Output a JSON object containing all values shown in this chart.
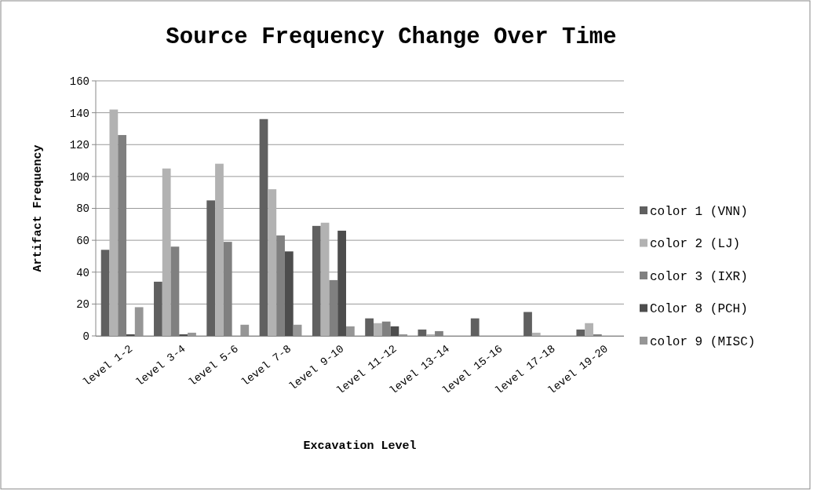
{
  "chart_data": {
    "type": "bar",
    "title": "Source Frequency Change Over Time",
    "xlabel": "Excavation Level",
    "ylabel": "Artifact Frequency",
    "categories": [
      "level 1-2",
      "level 3-4",
      "level 5-6",
      "level 7-8",
      "level 9-10",
      "level 11-12",
      "level 13-14",
      "level 15-16",
      "level 17-18",
      "level 19-20"
    ],
    "series": [
      {
        "name": "color 1 (VNN)",
        "color": "#606060",
        "values": [
          54,
          34,
          85,
          136,
          69,
          11,
          4,
          11,
          15,
          4
        ]
      },
      {
        "name": "color 2 (LJ)",
        "color": "#b2b2b2",
        "values": [
          142,
          105,
          108,
          92,
          71,
          8,
          1,
          0,
          2,
          8
        ]
      },
      {
        "name": "color 3 (IXR)",
        "color": "#808080",
        "values": [
          126,
          56,
          59,
          63,
          35,
          9,
          3,
          0,
          0,
          1
        ]
      },
      {
        "name": "Color 8 (PCH)",
        "color": "#4d4d4d",
        "values": [
          1,
          1,
          0,
          53,
          66,
          6,
          0,
          0,
          0,
          0
        ]
      },
      {
        "name": "color 9 (MISC)",
        "color": "#969696",
        "values": [
          18,
          2,
          7,
          7,
          6,
          1,
          0,
          0,
          0,
          0
        ]
      }
    ],
    "ylim": [
      0,
      160
    ],
    "yticks": [
      0,
      20,
      40,
      60,
      80,
      100,
      120,
      140,
      160
    ],
    "grid": "y",
    "legend": "right"
  }
}
